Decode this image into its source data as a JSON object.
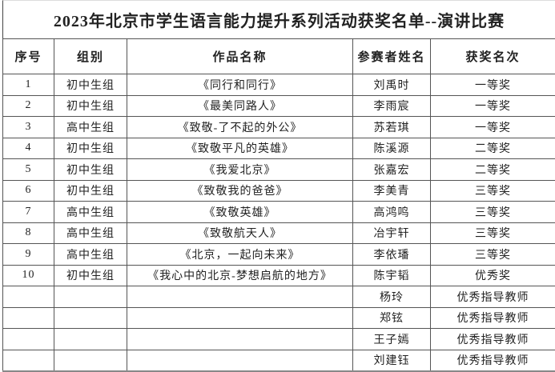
{
  "title": "2023年北京市学生语言能力提升系列活动获奖名单--演讲比赛",
  "headers": [
    "序号",
    "组别",
    "作品名称",
    "参赛者姓名",
    "获奖名次"
  ],
  "rows": [
    [
      "1",
      "初中生组",
      "《同行和同行》",
      "刘禹时",
      "一等奖"
    ],
    [
      "2",
      "初中生组",
      "《最美同路人》",
      "李雨宸",
      "一等奖"
    ],
    [
      "3",
      "高中生组",
      "《致敬-了不起的外公》",
      "苏若琪",
      "一等奖"
    ],
    [
      "4",
      "初中生组",
      "《致敬平凡的英雄》",
      "陈溪源",
      "二等奖"
    ],
    [
      "5",
      "初中生组",
      "《我爱北京》",
      "张嘉宏",
      "二等奖"
    ],
    [
      "6",
      "初中生组",
      "《致敬我的爸爸》",
      "李美青",
      "三等奖"
    ],
    [
      "7",
      "高中生组",
      "《致敬英雄》",
      "高鸿鸣",
      "三等奖"
    ],
    [
      "8",
      "高中生组",
      "《致敬航天人》",
      "冶宇轩",
      "三等奖"
    ],
    [
      "9",
      "高中生组",
      "《北京，一起向未来》",
      "李依璠",
      "三等奖"
    ],
    [
      "10",
      "初中生组",
      "《我心中的北京-梦想启航的地方》",
      "陈宇韬",
      "优秀奖"
    ],
    [
      "",
      "",
      "",
      "杨玲",
      "优秀指导教师"
    ],
    [
      "",
      "",
      "",
      "郑铉",
      "优秀指导教师"
    ],
    [
      "",
      "",
      "",
      "王子嫣",
      "优秀指导教师"
    ],
    [
      "",
      "",
      "",
      "刘建钰",
      "优秀指导教师"
    ]
  ]
}
